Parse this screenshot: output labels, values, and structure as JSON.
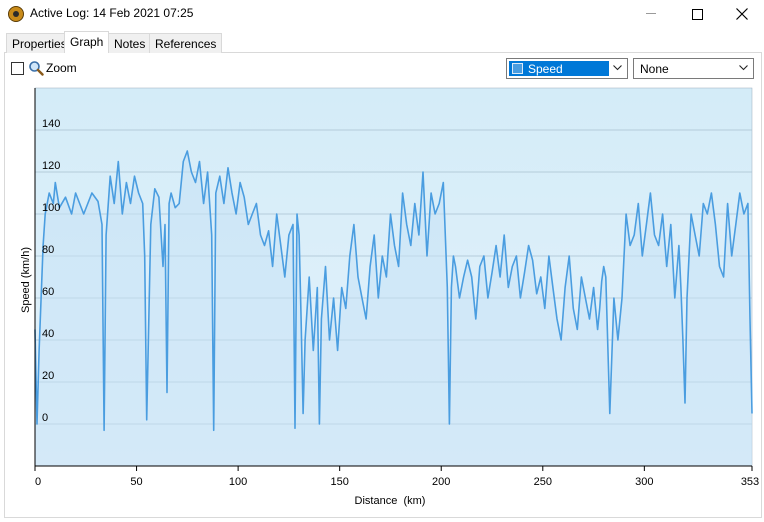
{
  "window": {
    "title": "Active Log: 14 Feb 2021 07:25",
    "app_icon": "app-logo-icon",
    "controls": [
      "minimize-icon",
      "maximize-icon",
      "close-icon"
    ]
  },
  "tabs": [
    {
      "label": "Properties",
      "active": false
    },
    {
      "label": "Graph",
      "active": true
    },
    {
      "label": "Notes",
      "active": false
    },
    {
      "label": "References",
      "active": false
    }
  ],
  "toolbar": {
    "zoom_label": "Zoom",
    "zoom_checked": false,
    "primary_series_select": {
      "value": "Speed",
      "swatch_color": "#4a9de0"
    },
    "secondary_series_select": {
      "value": "None"
    }
  },
  "chart_data": {
    "type": "line",
    "xlabel": "Distance  (km)",
    "ylabel": "Speed (km/h)",
    "x_ticks": [
      0,
      50,
      100,
      150,
      200,
      250,
      300,
      353
    ],
    "y_ticks": [
      0,
      20,
      40,
      60,
      80,
      100,
      120,
      140
    ],
    "xlim": [
      0,
      353
    ],
    "ylim": [
      -20,
      160
    ],
    "grid": "horizontal",
    "colors": {
      "line": "#4a9de0",
      "fill": "#d4e9f8",
      "plot_bg": "#d9edf9"
    },
    "series": [
      {
        "name": "Speed",
        "x": [
          0,
          1,
          2,
          3,
          4,
          5,
          7,
          9,
          10,
          12,
          15,
          18,
          20,
          24,
          28,
          31,
          33,
          34,
          35,
          37,
          39,
          41,
          43,
          45,
          47,
          49,
          51,
          53,
          54,
          55,
          57,
          59,
          61,
          63,
          64,
          65,
          66,
          67,
          69,
          71,
          73,
          75,
          77,
          79,
          81,
          83,
          85,
          87,
          88,
          89,
          91,
          93,
          95,
          97,
          99,
          101,
          103,
          105,
          107,
          109,
          111,
          113,
          115,
          117,
          119,
          121,
          123,
          125,
          127,
          128,
          129,
          130,
          131,
          132,
          133,
          135,
          137,
          139,
          140,
          141,
          143,
          145,
          147,
          149,
          151,
          153,
          155,
          157,
          159,
          161,
          163,
          165,
          167,
          169,
          171,
          173,
          175,
          177,
          179,
          181,
          183,
          185,
          187,
          189,
          191,
          193,
          195,
          197,
          199,
          201,
          203,
          204,
          205,
          206,
          207,
          209,
          211,
          213,
          215,
          217,
          219,
          221,
          223,
          225,
          227,
          229,
          231,
          233,
          235,
          237,
          239,
          241,
          243,
          245,
          247,
          249,
          251,
          253,
          255,
          257,
          259,
          261,
          263,
          265,
          267,
          269,
          271,
          273,
          275,
          277,
          278,
          279,
          280,
          281,
          283,
          285,
          287,
          289,
          291,
          293,
          295,
          297,
          299,
          301,
          303,
          305,
          307,
          309,
          311,
          313,
          315,
          317,
          318,
          319,
          320,
          321,
          323,
          325,
          327,
          329,
          331,
          333,
          335,
          337,
          339,
          341,
          343,
          345,
          347,
          349,
          351,
          352,
          353
        ],
        "y": [
          45,
          0,
          35,
          60,
          85,
          100,
          110,
          105,
          115,
          103,
          108,
          100,
          110,
          100,
          110,
          106,
          95,
          -3,
          90,
          118,
          105,
          125,
          100,
          115,
          105,
          118,
          110,
          105,
          80,
          2,
          95,
          112,
          108,
          75,
          95,
          15,
          105,
          110,
          103,
          105,
          125,
          130,
          120,
          115,
          125,
          105,
          120,
          90,
          -3,
          110,
          118,
          105,
          122,
          110,
          100,
          115,
          108,
          95,
          100,
          105,
          90,
          85,
          92,
          75,
          100,
          85,
          70,
          90,
          95,
          -2,
          100,
          90,
          50,
          5,
          40,
          70,
          35,
          65,
          0,
          50,
          75,
          40,
          60,
          35,
          65,
          55,
          80,
          95,
          70,
          60,
          50,
          75,
          90,
          60,
          80,
          70,
          100,
          85,
          75,
          110,
          95,
          85,
          105,
          90,
          120,
          80,
          110,
          100,
          105,
          115,
          65,
          0,
          65,
          80,
          75,
          60,
          70,
          78,
          70,
          50,
          75,
          80,
          60,
          72,
          85,
          70,
          90,
          65,
          75,
          80,
          60,
          72,
          85,
          78,
          62,
          70,
          55,
          80,
          65,
          50,
          40,
          65,
          80,
          55,
          45,
          70,
          60,
          50,
          65,
          45,
          55,
          68,
          75,
          70,
          5,
          60,
          40,
          60,
          100,
          85,
          90,
          105,
          80,
          95,
          110,
          90,
          85,
          100,
          75,
          95,
          60,
          85,
          65,
          40,
          10,
          60,
          100,
          90,
          80,
          105,
          100,
          110,
          95,
          75,
          70,
          105,
          80,
          95,
          110,
          100,
          105,
          50,
          5
        ]
      }
    ]
  }
}
